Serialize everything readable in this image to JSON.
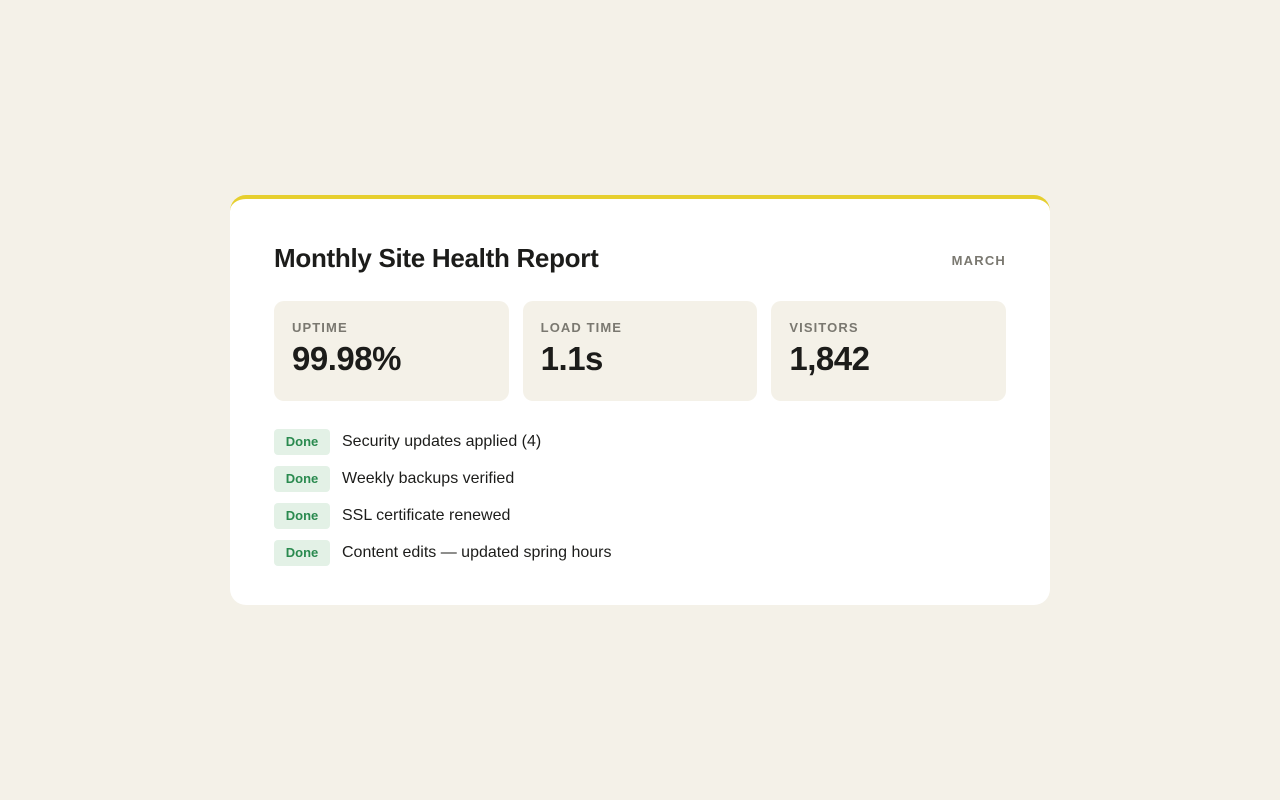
{
  "report": {
    "title": "Monthly Site Health Report",
    "period": "MARCH",
    "accent_color": "#e6cf2e",
    "metrics": [
      {
        "label": "UPTIME",
        "value": "99.98%"
      },
      {
        "label": "LOAD TIME",
        "value": "1.1s"
      },
      {
        "label": "VISITORS",
        "value": "1,842"
      }
    ],
    "tasks": [
      {
        "status": "Done",
        "text": "Security updates applied (4)"
      },
      {
        "status": "Done",
        "text": "Weekly backups verified"
      },
      {
        "status": "Done",
        "text": "SSL certificate renewed"
      },
      {
        "status": "Done",
        "text": "Content edits — updated spring hours"
      }
    ],
    "status_colors": {
      "done_bg": "#e3f1e6",
      "done_text": "#2a8a4f"
    }
  }
}
